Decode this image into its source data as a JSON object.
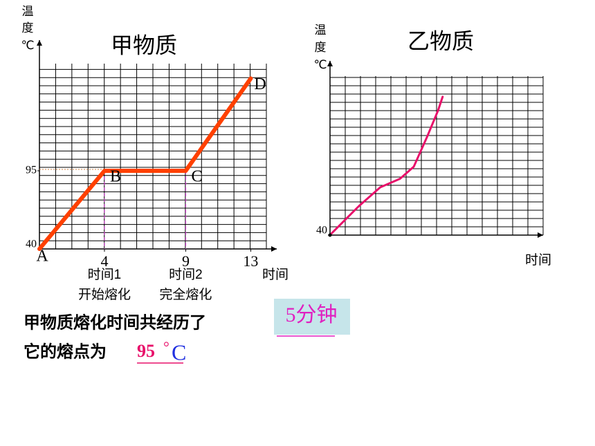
{
  "chart_data": [
    {
      "type": "line",
      "title": "甲物质",
      "y_label": "温度℃",
      "x_label": "时间",
      "x": [
        0,
        4,
        9,
        13
      ],
      "values": [
        40,
        95,
        95,
        160
      ],
      "color": "#ff4000",
      "point_labels": [
        "A",
        "B",
        "C",
        "D"
      ],
      "xlim": [
        0,
        14.6
      ],
      "ylim": [
        40,
        187
      ],
      "xticks": [
        4,
        9,
        13
      ],
      "yticks": [
        40,
        95
      ],
      "grid": true,
      "tick_notes": [
        {
          "label": "时间1",
          "sub": "开始熔化"
        },
        {
          "label": "时间2",
          "sub": "完全熔化"
        }
      ]
    },
    {
      "type": "line",
      "title": "乙物质",
      "y_label": "温度℃",
      "x_label": "时间",
      "x": [
        0.1,
        1.9,
        3.3,
        4.6,
        5.5,
        6.4,
        7.1,
        7.4
      ],
      "values": [
        41,
        57,
        68,
        73,
        80,
        98,
        113,
        121
      ],
      "color": "#e8106a",
      "xlim": [
        0,
        14
      ],
      "ylim": [
        40,
        142
      ],
      "yticks": [
        40
      ],
      "grid": true
    }
  ],
  "question": {
    "line1": "甲物质熔化时间共经历了",
    "answer1": "5分钟",
    "line2": "它的熔点为",
    "answer2_value": "95",
    "answer2_degree": "°",
    "answer2_unit": "C"
  }
}
